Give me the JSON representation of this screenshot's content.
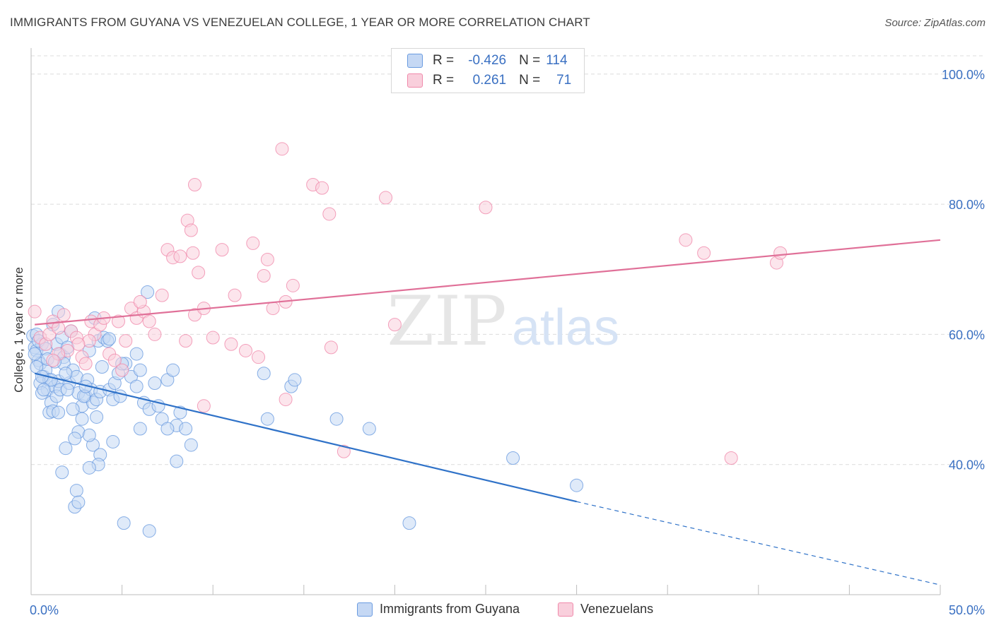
{
  "title": "IMMIGRANTS FROM GUYANA VS VENEZUELAN COLLEGE, 1 YEAR OR MORE CORRELATION CHART",
  "source": "Source: ZipAtlas.com",
  "watermark": {
    "zip": "ZIP",
    "atlas": "atlas"
  },
  "legend": {
    "r_label": "R =",
    "n_label": "N =",
    "rows": [
      {
        "r": "-0.426",
        "n": "114",
        "color": "#6a9be0"
      },
      {
        "r": "0.261",
        "n": "71",
        "color": "#f08aab"
      }
    ]
  },
  "bottom_legend": [
    {
      "label": "Immigrants from Guyana",
      "color": "#6a9be0"
    },
    {
      "label": "Venezuelans",
      "color": "#f08aab"
    }
  ],
  "chart_data": {
    "type": "scatter",
    "title": "IMMIGRANTS FROM GUYANA VS VENEZUELAN COLLEGE, 1 YEAR OR MORE CORRELATION CHART",
    "xlabel": "",
    "ylabel": "College, 1 year or more",
    "xlim": [
      0,
      50
    ],
    "ylim": [
      20,
      104
    ],
    "x_tick_labels": [
      "0.0%",
      "50.0%"
    ],
    "y_ticks": [
      40,
      60,
      80,
      100
    ],
    "y_tick_labels": [
      "40.0%",
      "60.0%",
      "80.0%",
      "100.0%"
    ],
    "grid": true,
    "legend_position": "top-center",
    "series": [
      {
        "name": "Immigrants from Guyana",
        "color": "#6a9be0",
        "line_color": "#2f72c8",
        "trend": {
          "x0": 0.2,
          "y0": 54.0,
          "x1": 30.0,
          "y1": 34.3,
          "dash_to_x": 50.0,
          "dash_to_y": 21.5
        },
        "points": [
          [
            0.1,
            59.8
          ],
          [
            0.2,
            58.0
          ],
          [
            0.3,
            57.5
          ],
          [
            0.4,
            56.0
          ],
          [
            0.5,
            55.5
          ],
          [
            0.3,
            60.0
          ],
          [
            0.6,
            58.5
          ],
          [
            0.7,
            53.5
          ],
          [
            0.8,
            54.5
          ],
          [
            0.5,
            52.5
          ],
          [
            0.9,
            51.5
          ],
          [
            1.0,
            53.0
          ],
          [
            0.6,
            51.0
          ],
          [
            1.1,
            49.5
          ],
          [
            1.0,
            48.0
          ],
          [
            1.2,
            48.2
          ],
          [
            1.3,
            52.0
          ],
          [
            1.4,
            50.5
          ],
          [
            1.5,
            52.8
          ],
          [
            1.6,
            51.5
          ],
          [
            1.2,
            61.5
          ],
          [
            1.4,
            58.5
          ],
          [
            1.6,
            57.0
          ],
          [
            1.8,
            56.5
          ],
          [
            1.7,
            59.5
          ],
          [
            1.5,
            63.5
          ],
          [
            1.8,
            55.5
          ],
          [
            2.0,
            58.0
          ],
          [
            2.2,
            60.5
          ],
          [
            2.3,
            54.5
          ],
          [
            2.1,
            52.5
          ],
          [
            2.5,
            53.5
          ],
          [
            2.6,
            51.0
          ],
          [
            2.8,
            49.0
          ],
          [
            3.0,
            50.5
          ],
          [
            3.1,
            53.0
          ],
          [
            3.3,
            51.5
          ],
          [
            3.4,
            49.5
          ],
          [
            3.6,
            50.0
          ],
          [
            3.8,
            51.2
          ],
          [
            3.2,
            57.5
          ],
          [
            3.5,
            62.5
          ],
          [
            3.7,
            59.0
          ],
          [
            3.9,
            55.0
          ],
          [
            4.0,
            59.5
          ],
          [
            4.2,
            59.0
          ],
          [
            4.3,
            51.5
          ],
          [
            4.5,
            50.0
          ],
          [
            4.6,
            52.5
          ],
          [
            4.8,
            54.0
          ],
          [
            5.2,
            55.5
          ],
          [
            5.5,
            53.5
          ],
          [
            5.8,
            57.0
          ],
          [
            6.0,
            54.5
          ],
          [
            6.2,
            49.5
          ],
          [
            6.5,
            48.5
          ],
          [
            7.0,
            49.0
          ],
          [
            7.2,
            47.0
          ],
          [
            7.5,
            53.0
          ],
          [
            7.8,
            54.5
          ],
          [
            8.2,
            48.0
          ],
          [
            8.0,
            46.0
          ],
          [
            8.5,
            45.5
          ],
          [
            8.8,
            43.0
          ],
          [
            6.4,
            66.5
          ],
          [
            4.3,
            59.3
          ],
          [
            5.0,
            55.5
          ],
          [
            2.8,
            47.0
          ],
          [
            2.6,
            45.0
          ],
          [
            3.6,
            47.3
          ],
          [
            3.4,
            43.0
          ],
          [
            3.8,
            41.5
          ],
          [
            3.7,
            40.0
          ],
          [
            3.2,
            44.5
          ],
          [
            4.5,
            43.5
          ],
          [
            6.0,
            45.5
          ],
          [
            7.5,
            45.5
          ],
          [
            8.0,
            40.5
          ],
          [
            2.4,
            44.0
          ],
          [
            1.9,
            42.5
          ],
          [
            1.7,
            38.8
          ],
          [
            3.2,
            39.5
          ],
          [
            2.5,
            36.0
          ],
          [
            2.4,
            33.5
          ],
          [
            2.6,
            34.2
          ],
          [
            5.1,
            31.0
          ],
          [
            6.5,
            29.8
          ],
          [
            13.0,
            47.0
          ],
          [
            14.3,
            52.0
          ],
          [
            14.5,
            53.0
          ],
          [
            18.6,
            45.5
          ],
          [
            26.5,
            41.0
          ],
          [
            30.0,
            36.8
          ],
          [
            20.8,
            31.0
          ],
          [
            0.4,
            59.0
          ],
          [
            0.8,
            57.8
          ],
          [
            0.9,
            56.2
          ],
          [
            1.3,
            55.8
          ],
          [
            2.0,
            51.5
          ],
          [
            2.9,
            50.5
          ],
          [
            5.8,
            52.0
          ],
          [
            6.8,
            52.5
          ],
          [
            0.2,
            57.0
          ],
          [
            0.3,
            55.0
          ],
          [
            1.1,
            53.0
          ],
          [
            4.9,
            50.5
          ],
          [
            1.9,
            54.0
          ],
          [
            0.7,
            51.5
          ],
          [
            12.8,
            54.0
          ],
          [
            16.8,
            47.0
          ],
          [
            2.3,
            48.5
          ],
          [
            3.0,
            52.0
          ],
          [
            0.6,
            53.5
          ],
          [
            1.5,
            48.0
          ]
        ]
      },
      {
        "name": "Venezuelans",
        "color": "#f08aab",
        "line_color": "#e07098",
        "trend": {
          "x0": 0.2,
          "y0": 61.5,
          "x1": 50.0,
          "y1": 74.5
        },
        "points": [
          [
            0.2,
            63.5
          ],
          [
            0.5,
            59.5
          ],
          [
            0.8,
            58.5
          ],
          [
            1.0,
            60.0
          ],
          [
            1.2,
            62.0
          ],
          [
            1.5,
            61.0
          ],
          [
            1.8,
            63.0
          ],
          [
            2.0,
            57.5
          ],
          [
            2.2,
            60.5
          ],
          [
            2.5,
            59.5
          ],
          [
            2.8,
            56.5
          ],
          [
            3.0,
            55.5
          ],
          [
            3.3,
            62.0
          ],
          [
            3.5,
            60.0
          ],
          [
            3.8,
            61.5
          ],
          [
            4.0,
            62.5
          ],
          [
            4.3,
            57.0
          ],
          [
            4.6,
            56.0
          ],
          [
            5.0,
            54.5
          ],
          [
            5.2,
            59.0
          ],
          [
            5.5,
            64.0
          ],
          [
            5.8,
            62.5
          ],
          [
            6.2,
            63.5
          ],
          [
            6.5,
            62.0
          ],
          [
            6.8,
            60.0
          ],
          [
            7.2,
            66.0
          ],
          [
            7.5,
            73.0
          ],
          [
            7.8,
            71.8
          ],
          [
            8.2,
            72.0
          ],
          [
            8.6,
            77.5
          ],
          [
            8.9,
            72.5
          ],
          [
            9.2,
            69.5
          ],
          [
            9.0,
            63.0
          ],
          [
            8.5,
            59.0
          ],
          [
            9.5,
            64.0
          ],
          [
            10.0,
            59.5
          ],
          [
            10.5,
            73.0
          ],
          [
            11.0,
            58.5
          ],
          [
            11.2,
            66.0
          ],
          [
            11.8,
            57.5
          ],
          [
            12.2,
            74.0
          ],
          [
            12.5,
            56.5
          ],
          [
            12.8,
            69.0
          ],
          [
            13.0,
            71.5
          ],
          [
            13.3,
            64.0
          ],
          [
            14.0,
            65.0
          ],
          [
            13.8,
            88.5
          ],
          [
            14.4,
            67.5
          ],
          [
            15.5,
            83.0
          ],
          [
            16.0,
            82.5
          ],
          [
            16.4,
            78.5
          ],
          [
            16.5,
            58.0
          ],
          [
            17.2,
            42.0
          ],
          [
            19.5,
            81.0
          ],
          [
            20.0,
            61.5
          ],
          [
            25.0,
            79.5
          ],
          [
            36.0,
            74.5
          ],
          [
            37.0,
            72.5
          ],
          [
            38.5,
            41.0
          ],
          [
            41.0,
            71.0
          ],
          [
            41.2,
            72.5
          ],
          [
            9.0,
            83.0
          ],
          [
            8.8,
            76.0
          ],
          [
            6.0,
            65.0
          ],
          [
            14.0,
            50.0
          ],
          [
            9.5,
            49.0
          ],
          [
            3.2,
            59.0
          ],
          [
            2.6,
            58.5
          ],
          [
            1.5,
            57.0
          ],
          [
            1.2,
            56.0
          ],
          [
            4.8,
            62.0
          ]
        ]
      }
    ]
  }
}
